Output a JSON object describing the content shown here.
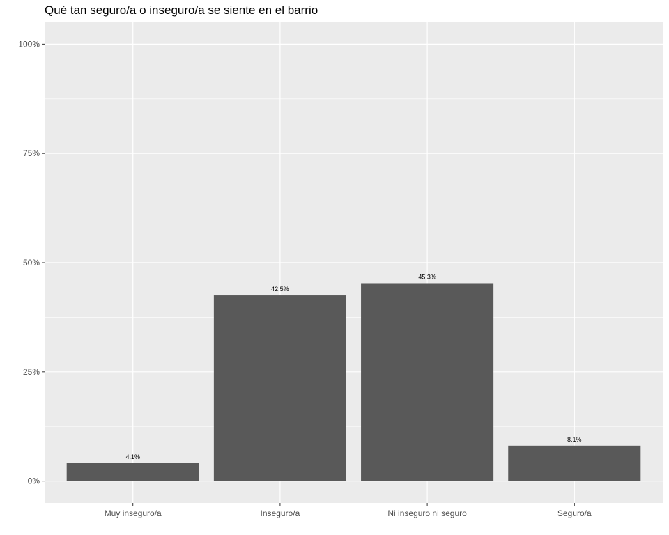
{
  "chart_data": {
    "type": "bar",
    "title": "Qué tan seguro/a o inseguro/a se siente en el barrio",
    "xlabel": "",
    "ylabel": "",
    "categories": [
      "Muy inseguro/a",
      "Inseguro/a",
      "Ni inseguro ni seguro",
      "Seguro/a"
    ],
    "values": [
      4.1,
      42.5,
      45.3,
      8.1
    ],
    "value_labels": [
      "4.1%",
      "42.5%",
      "45.3%",
      "8.1%"
    ],
    "ylim": [
      -5,
      105
    ],
    "yticks": [
      0,
      25,
      50,
      75,
      100
    ],
    "ytick_labels": [
      "0%",
      "25%",
      "50%",
      "75%",
      "100%"
    ],
    "grid": true,
    "colors": {
      "bar": "#595959",
      "panel": "#ebebeb",
      "grid": "#ffffff"
    }
  }
}
